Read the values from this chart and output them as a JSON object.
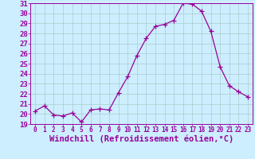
{
  "x": [
    0,
    1,
    2,
    3,
    4,
    5,
    6,
    7,
    8,
    9,
    10,
    11,
    12,
    13,
    14,
    15,
    16,
    17,
    18,
    19,
    20,
    21,
    22,
    23
  ],
  "y": [
    20.3,
    20.8,
    19.9,
    19.8,
    20.1,
    19.2,
    20.4,
    20.5,
    20.4,
    22.1,
    23.7,
    25.8,
    27.5,
    28.7,
    28.9,
    29.3,
    31.0,
    30.9,
    30.2,
    28.2,
    24.7,
    22.8,
    22.2,
    21.7
  ],
  "line_color": "#990099",
  "marker": "+",
  "marker_size": 4,
  "bg_color": "#cceeff",
  "grid_color": "#aacccc",
  "xlabel": "Windchill (Refroidissement éolien,°C)",
  "ylim": [
    19,
    31
  ],
  "xlim": [
    -0.5,
    23.5
  ],
  "yticks": [
    19,
    20,
    21,
    22,
    23,
    24,
    25,
    26,
    27,
    28,
    29,
    30,
    31
  ],
  "xticks": [
    0,
    1,
    2,
    3,
    4,
    5,
    6,
    7,
    8,
    9,
    10,
    11,
    12,
    13,
    14,
    15,
    16,
    17,
    18,
    19,
    20,
    21,
    22,
    23
  ],
  "tick_color": "#990099",
  "label_color": "#990099",
  "axis_color": "#990099",
  "xlabel_fontsize": 7.5,
  "ytick_fontsize": 6.5,
  "xtick_fontsize": 5.5
}
